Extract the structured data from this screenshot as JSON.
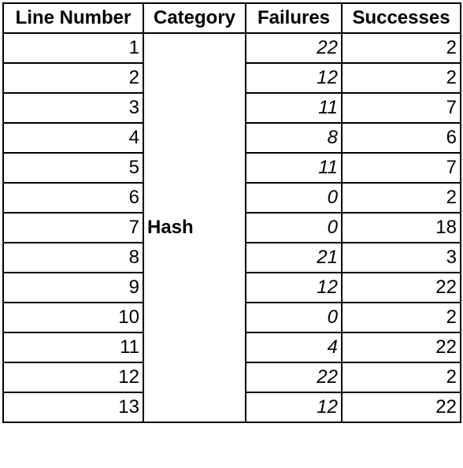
{
  "table": {
    "headers": [
      "Line Number",
      "Category",
      "Failures",
      "Successes"
    ],
    "category": "Hash",
    "rows": [
      {
        "line": "1",
        "failures": "22",
        "successes": "2"
      },
      {
        "line": "2",
        "failures": "12",
        "successes": "2"
      },
      {
        "line": "3",
        "failures": "11",
        "successes": "7"
      },
      {
        "line": "4",
        "failures": "8",
        "successes": "6"
      },
      {
        "line": "5",
        "failures": "11",
        "successes": "7"
      },
      {
        "line": "6",
        "failures": "0",
        "successes": "2"
      },
      {
        "line": "7",
        "failures": "0",
        "successes": "18"
      },
      {
        "line": "8",
        "failures": "21",
        "successes": "3"
      },
      {
        "line": "9",
        "failures": "12",
        "successes": "22"
      },
      {
        "line": "10",
        "failures": "0",
        "successes": "2"
      },
      {
        "line": "11",
        "failures": "4",
        "successes": "22"
      },
      {
        "line": "12",
        "failures": "22",
        "successes": "2"
      },
      {
        "line": "13",
        "failures": "12",
        "successes": "22"
      }
    ]
  }
}
